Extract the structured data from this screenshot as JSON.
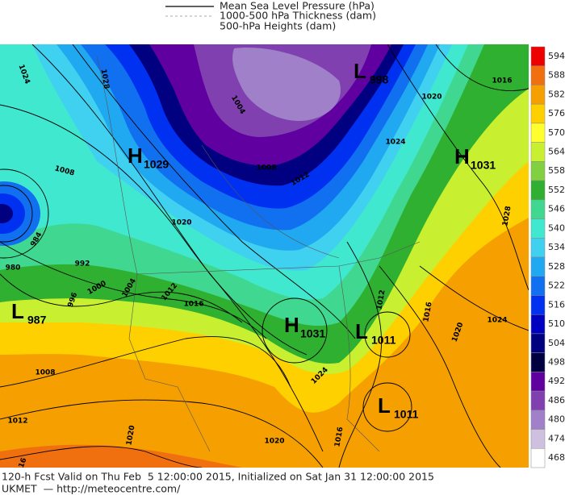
{
  "legend": [
    "Mean Sea Level Pressure (hPa)",
    "1000-500 hPa Thickness (dam)",
    "500-hPa Heights (dam)"
  ],
  "centers": [
    {
      "letter": "L",
      "value": "998"
    },
    {
      "letter": "H",
      "value": "1029"
    },
    {
      "letter": "H",
      "value": "1031"
    },
    {
      "letter": "L",
      "value": "987"
    },
    {
      "letter": "H",
      "value": "1031"
    },
    {
      "letter": "L",
      "value": "1011"
    },
    {
      "letter": "L",
      "value": "1011"
    }
  ],
  "isobar_labels": [
    "1024",
    "1028",
    "1004",
    "1008",
    "1012",
    "1020",
    "1016",
    "1020",
    "1024",
    "1028",
    "1008",
    "984",
    "992",
    "980",
    "1000",
    "996",
    "1004",
    "1012",
    "1016",
    "1008",
    "1012",
    "1016",
    "1020",
    "1020",
    "1024",
    "1016",
    "1012",
    "1016",
    "1020",
    "1024"
  ],
  "colorbar": {
    "levels": [
      594,
      588,
      582,
      576,
      570,
      564,
      558,
      552,
      546,
      540,
      534,
      528,
      522,
      516,
      510,
      504,
      498,
      492,
      486,
      480,
      474,
      468
    ],
    "colors": [
      "#ee0000",
      "#f07010",
      "#f5a000",
      "#ffd000",
      "#ffff30",
      "#c8f030",
      "#80d040",
      "#30b030",
      "#40d890",
      "#40e8d0",
      "#40d0f0",
      "#20a8f0",
      "#1070f0",
      "#0030f0",
      "#0000c0",
      "#000080",
      "#000040",
      "#6000a0",
      "#8040b0",
      "#a080c8",
      "#d0c0e0",
      "#ffffff"
    ]
  },
  "footer": [
    "120-h Fcst Valid on Thu Feb  5 12:00:00 2015, Initialized on Sat Jan 31 12:00:00 2015",
    "UKMET  — http://meteocentre.com/"
  ]
}
